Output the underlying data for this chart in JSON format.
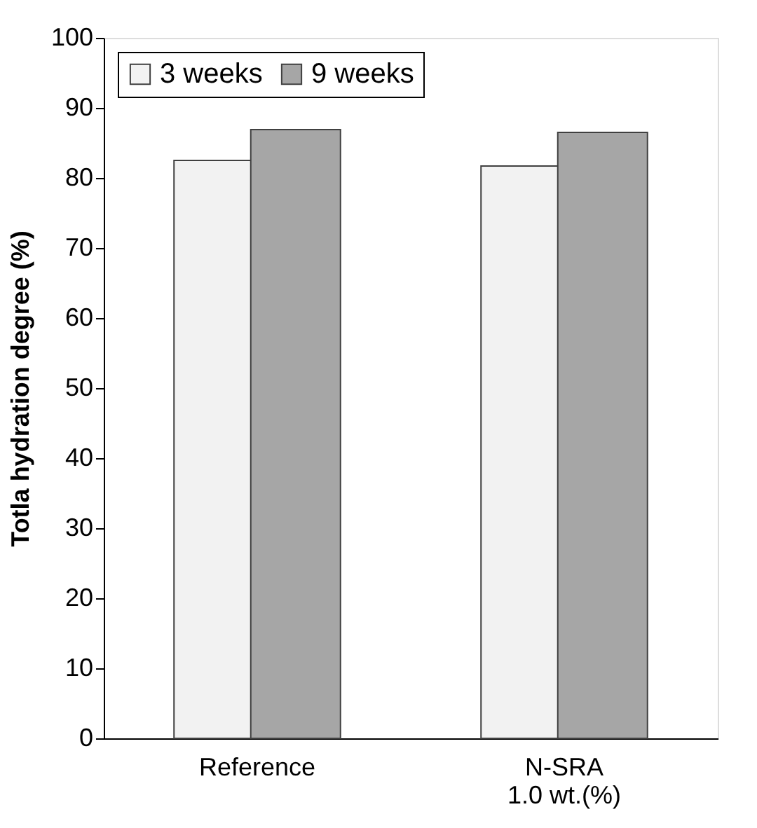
{
  "chart_data": {
    "type": "bar",
    "ylabel": "Totla hydration degree (%)",
    "categories": [
      "Reference",
      "N-SRA\n1.0 wt.(%)"
    ],
    "series": [
      {
        "name": "3 weeks",
        "color": "#f2f2f2",
        "values": [
          82.5,
          81.7
        ]
      },
      {
        "name": "9 weeks",
        "color": "#a6a6a6",
        "values": [
          86.9,
          86.5
        ]
      }
    ],
    "ylim": [
      0,
      100
    ],
    "yticks": [
      0,
      10,
      20,
      30,
      40,
      50,
      60,
      70,
      80,
      90,
      100
    ],
    "grid": false,
    "legend": "top left"
  }
}
